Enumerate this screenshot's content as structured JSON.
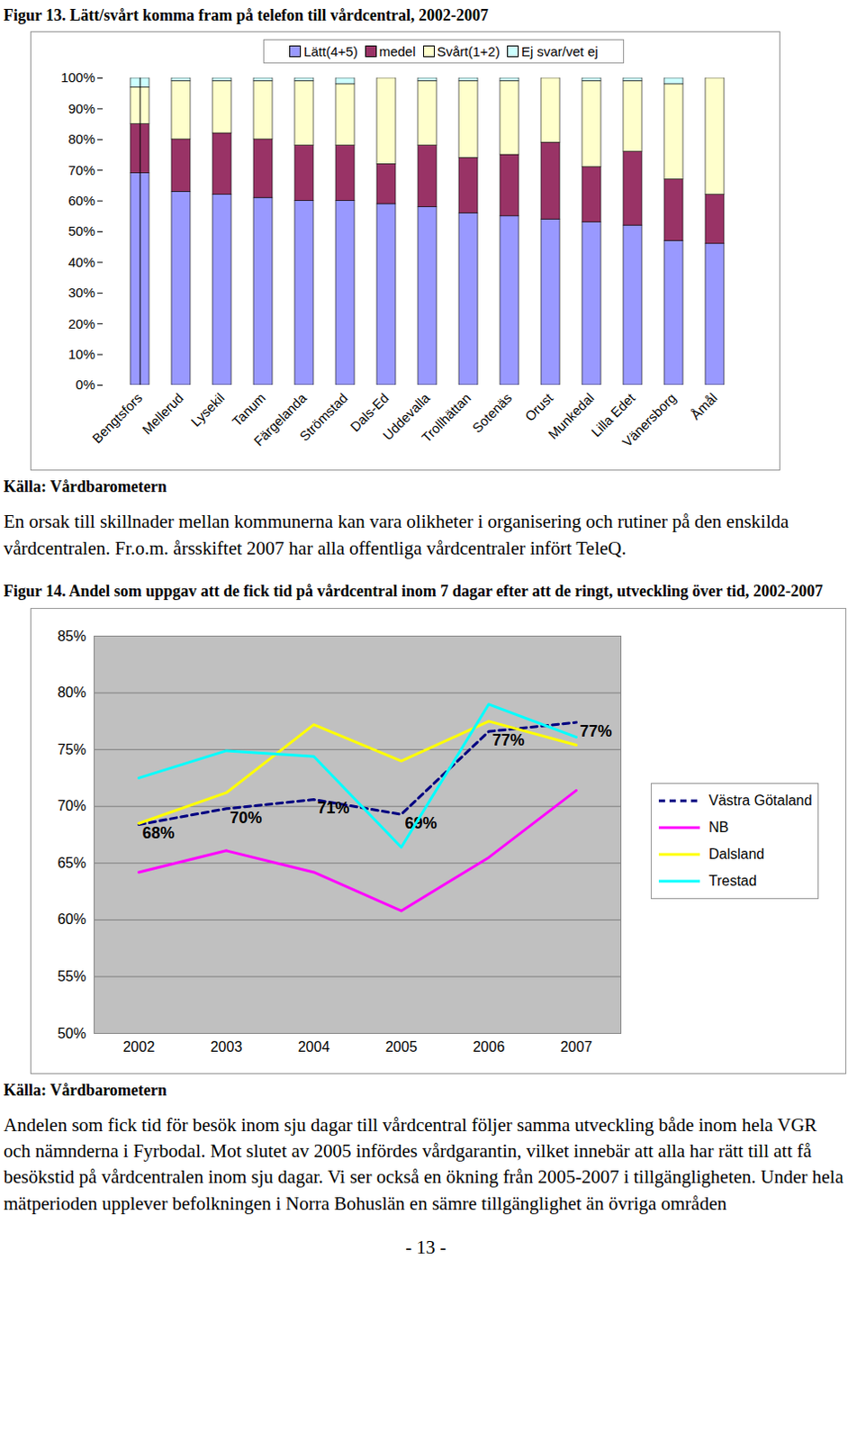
{
  "chart_data": [
    {
      "type": "bar",
      "stacked": true,
      "title": "Figur 13. Lätt/svårt komma fram på telefon till vårdcentral, 2002-2007",
      "source": "Källa: Vårdbarometern",
      "legend": "top",
      "categories": [
        "Bengtsfors",
        "Mellerud",
        "Lysekil",
        "Tanum",
        "Färgelanda",
        "Strömstad",
        "Dals-Ed",
        "Uddevalla",
        "Trollhättan",
        "Sotenäs",
        "Orust",
        "Munkedal",
        "Lilla Edet",
        "Vänersborg",
        "Åmål"
      ],
      "series": [
        {
          "name": "Lätt(4+5)",
          "color": "#9999ff",
          "values": [
            69,
            63,
            62,
            61,
            60,
            60,
            59,
            58,
            56,
            55,
            54,
            53,
            52,
            47,
            46
          ]
        },
        {
          "name": "medel",
          "color": "#993366",
          "values": [
            16,
            17,
            20,
            19,
            18,
            18,
            13,
            20,
            18,
            20,
            25,
            18,
            24,
            20,
            16
          ]
        },
        {
          "name": "Svårt(1+2)",
          "color": "#ffffcc",
          "values": [
            12,
            19,
            17,
            19,
            21,
            20,
            28,
            21,
            25,
            24,
            21,
            28,
            23,
            31,
            38
          ]
        },
        {
          "name": "Ej svar/vet ej",
          "color": "#ccffff",
          "values": [
            3,
            1,
            1,
            1,
            1,
            2,
            0,
            1,
            1,
            1,
            0,
            1,
            1,
            2,
            0
          ]
        }
      ],
      "ylim": [
        0,
        100
      ],
      "yticks": [
        {
          "value": 0,
          "label": "0%"
        },
        {
          "value": 10,
          "label": "10%"
        },
        {
          "value": 20,
          "label": "20%"
        },
        {
          "value": 30,
          "label": "30%"
        },
        {
          "value": 40,
          "label": "40%"
        },
        {
          "value": 50,
          "label": "50%"
        },
        {
          "value": 60,
          "label": "60%"
        },
        {
          "value": 70,
          "label": "70%"
        },
        {
          "value": 80,
          "label": "80%"
        },
        {
          "value": 90,
          "label": "90%"
        },
        {
          "value": 100,
          "label": "100%"
        }
      ],
      "grid": false
    },
    {
      "type": "line",
      "title": "Figur 14. Andel som uppgav att de fick tid på vårdcentral inom 7 dagar efter att de ringt, utveckling över tid, 2002-2007",
      "source": "Källa: Vårdbarometern",
      "legend": "right",
      "categories": [
        "2002",
        "2003",
        "2004",
        "2005",
        "2006",
        "2007"
      ],
      "series": [
        {
          "name": "Västra Götaland",
          "color": "#000080",
          "line_style": "dashed",
          "data_labels": true,
          "values": [
            68.4,
            69.8,
            70.6,
            69.3,
            76.6,
            77.4
          ],
          "value_labels": [
            "68%",
            "70%",
            "71%",
            "69%",
            "77%",
            "77%"
          ]
        },
        {
          "name": "NB",
          "color": "#ff00ff",
          "values": [
            64.2,
            66.1,
            64.2,
            60.8,
            65.5,
            71.4
          ]
        },
        {
          "name": "Dalsland",
          "color": "#ffff00",
          "values": [
            68.5,
            71.2,
            77.2,
            74.0,
            77.5,
            75.4
          ]
        },
        {
          "name": "Trestad",
          "color": "#00ffff",
          "values": [
            72.5,
            74.9,
            74.4,
            66.4,
            79.0,
            76.1
          ]
        }
      ],
      "ylim": [
        50,
        85
      ],
      "yticks": [
        {
          "value": 50,
          "label": "50%"
        },
        {
          "value": 55,
          "label": "55%"
        },
        {
          "value": 60,
          "label": "60%"
        },
        {
          "value": 65,
          "label": "65%"
        },
        {
          "value": 70,
          "label": "70%"
        },
        {
          "value": 75,
          "label": "75%"
        },
        {
          "value": 80,
          "label": "80%"
        },
        {
          "value": 85,
          "label": "85%"
        }
      ],
      "grid": true
    }
  ],
  "document": {
    "paragraphs": [
      "En orsak till skillnader mellan kommunerna kan vara olikheter i organisering och rutiner på den enskilda vårdcentralen. Fr.o.m. årsskiftet 2007 har alla offentliga vårdcentraler infört TeleQ.",
      "Andelen som fick tid för besök inom sju dagar till vårdcentral följer samma utveckling både inom hela VGR och nämnderna i Fyrbodal. Mot slutet av 2005 infördes vårdgarantin, vilket innebär att alla har rätt till att få besökstid på vårdcentralen inom sju dagar. Vi ser också en ökning från 2005-2007 i tillgängligheten. Under hela mätperioden upplever befolkningen i Norra Bohuslän en sämre tillgänglighet än övriga områden"
    ],
    "page_number": "- 13 -"
  }
}
